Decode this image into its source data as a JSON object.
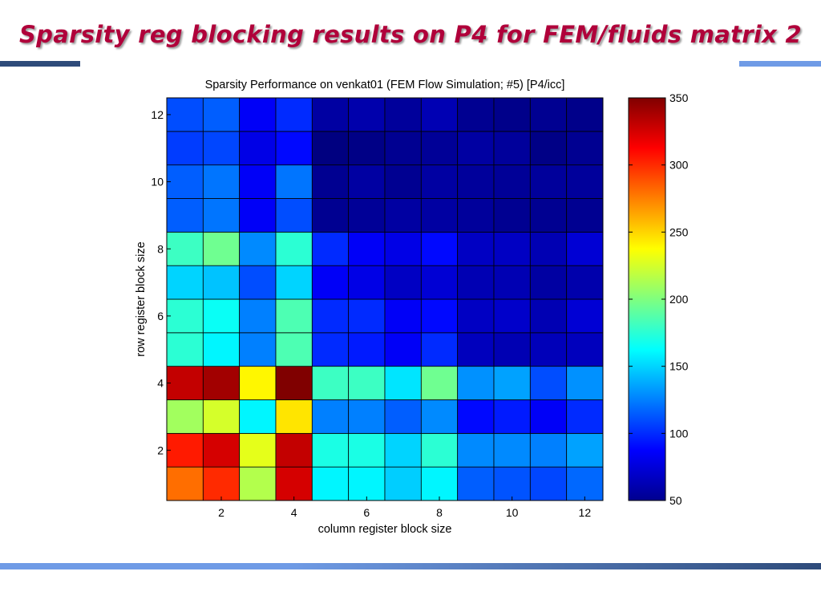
{
  "slide": {
    "title": "Sparsity reg blocking results on P4 for FEM/fluids matrix 2"
  },
  "chart_data": {
    "type": "heatmap",
    "title": "Sparsity Performance on venkat01 (FEM Flow Simulation; #5) [P4/icc]",
    "xlabel": "column register block size",
    "ylabel": "row register block size",
    "x": [
      1,
      2,
      3,
      4,
      5,
      6,
      7,
      8,
      9,
      10,
      11,
      12
    ],
    "y": [
      1,
      2,
      3,
      4,
      5,
      6,
      7,
      8,
      9,
      10,
      11,
      12
    ],
    "xticks": [
      2,
      4,
      6,
      8,
      10,
      12
    ],
    "yticks": [
      2,
      4,
      6,
      8,
      10,
      12
    ],
    "colorbar": {
      "range": [
        50,
        350
      ],
      "ticks": [
        50,
        100,
        150,
        200,
        250,
        300,
        350
      ],
      "colormap": "jet"
    },
    "values_by_row": [
      [
        280,
        300,
        215,
        325,
        160,
        160,
        148,
        160,
        115,
        112,
        108,
        118
      ],
      [
        305,
        325,
        230,
        330,
        170,
        170,
        150,
        175,
        128,
        128,
        125,
        135
      ],
      [
        210,
        225,
        160,
        245,
        125,
        125,
        115,
        128,
        90,
        95,
        85,
        100
      ],
      [
        330,
        340,
        240,
        350,
        180,
        180,
        155,
        195,
        130,
        135,
        110,
        130
      ],
      [
        175,
        160,
        125,
        185,
        100,
        95,
        85,
        100,
        68,
        65,
        67,
        68
      ],
      [
        175,
        165,
        125,
        185,
        100,
        100,
        85,
        90,
        70,
        72,
        65,
        75
      ],
      [
        150,
        145,
        110,
        150,
        85,
        80,
        70,
        75,
        65,
        65,
        60,
        63
      ],
      [
        180,
        195,
        128,
        175,
        100,
        85,
        80,
        90,
        70,
        70,
        65,
        75
      ],
      [
        115,
        122,
        85,
        110,
        55,
        57,
        60,
        60,
        58,
        55,
        55,
        55
      ],
      [
        115,
        122,
        85,
        122,
        55,
        60,
        55,
        60,
        58,
        57,
        58,
        58
      ],
      [
        105,
        108,
        80,
        90,
        50,
        52,
        55,
        57,
        60,
        58,
        52,
        55
      ],
      [
        110,
        115,
        85,
        100,
        60,
        63,
        58,
        65,
        55,
        53,
        55,
        53
      ]
    ]
  }
}
